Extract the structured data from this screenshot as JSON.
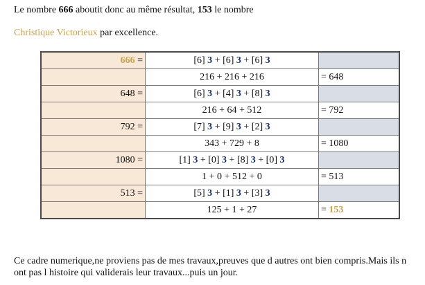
{
  "intro": {
    "line1": [
      {
        "text": "Le nombre ",
        "style": "plain"
      },
      {
        "text": "666",
        "style": "bold"
      },
      {
        "text": " aboutit donc au même résultat, ",
        "style": "plain"
      },
      {
        "text": "153",
        "style": "bold"
      },
      {
        "text": " le nombre",
        "style": "plain"
      }
    ],
    "line2": [
      {
        "text": "Christique Victorieux",
        "style": "gold"
      },
      {
        "text": " par excellence.",
        "style": "plain"
      }
    ]
  },
  "table": {
    "rows": [
      {
        "left": [
          {
            "text": "666",
            "style": "gold-bold"
          },
          {
            "text": " =",
            "style": "plain"
          }
        ],
        "mid": [
          {
            "text": "[6] ",
            "style": "plain"
          },
          {
            "text": "3",
            "style": "navy-bold"
          },
          {
            "text": " + [6] ",
            "style": "plain"
          },
          {
            "text": "3",
            "style": "navy-bold"
          },
          {
            "text": " + [6] ",
            "style": "plain"
          },
          {
            "text": "3",
            "style": "navy-bold"
          }
        ],
        "right": []
      },
      {
        "left": [],
        "mid": [
          {
            "text": "216 + 216 + 216",
            "style": "plain"
          }
        ],
        "right": [
          {
            "text": "= 648",
            "style": "plain"
          }
        ]
      },
      {
        "left": [
          {
            "text": "648 =",
            "style": "plain"
          }
        ],
        "mid": [
          {
            "text": "[6] ",
            "style": "plain"
          },
          {
            "text": "3",
            "style": "navy-bold"
          },
          {
            "text": " + [4] ",
            "style": "plain"
          },
          {
            "text": "3",
            "style": "navy-bold"
          },
          {
            "text": " + [8] ",
            "style": "plain"
          },
          {
            "text": "3",
            "style": "navy-bold"
          }
        ],
        "right": []
      },
      {
        "left": [],
        "mid": [
          {
            "text": "216 + 64 + 512",
            "style": "plain"
          }
        ],
        "right": [
          {
            "text": "= 792",
            "style": "plain"
          }
        ]
      },
      {
        "left": [
          {
            "text": "792 =",
            "style": "plain"
          }
        ],
        "mid": [
          {
            "text": "[7] ",
            "style": "plain"
          },
          {
            "text": "3",
            "style": "navy-bold"
          },
          {
            "text": " + [9] ",
            "style": "plain"
          },
          {
            "text": "3",
            "style": "navy-bold"
          },
          {
            "text": " + [2] ",
            "style": "plain"
          },
          {
            "text": "3",
            "style": "navy-bold"
          }
        ],
        "right": []
      },
      {
        "left": [],
        "mid": [
          {
            "text": "343 + 729 + 8",
            "style": "plain"
          }
        ],
        "right": [
          {
            "text": "= 1080",
            "style": "plain"
          }
        ]
      },
      {
        "left": [
          {
            "text": "1080 =",
            "style": "plain"
          }
        ],
        "mid": [
          {
            "text": "[1] ",
            "style": "plain"
          },
          {
            "text": "3",
            "style": "navy-bold"
          },
          {
            "text": " + [0] ",
            "style": "plain"
          },
          {
            "text": "3",
            "style": "navy-bold"
          },
          {
            "text": " + [8] ",
            "style": "plain"
          },
          {
            "text": "3",
            "style": "navy-bold"
          },
          {
            "text": " + [0] ",
            "style": "plain"
          },
          {
            "text": "3",
            "style": "navy-bold"
          }
        ],
        "right": []
      },
      {
        "left": [],
        "mid": [
          {
            "text": "1 + 0 + 512 + 0",
            "style": "plain"
          }
        ],
        "right": [
          {
            "text": "= 513",
            "style": "plain"
          }
        ]
      },
      {
        "left": [
          {
            "text": "513 =",
            "style": "plain"
          }
        ],
        "mid": [
          {
            "text": "[5] ",
            "style": "plain"
          },
          {
            "text": "3",
            "style": "navy-bold"
          },
          {
            "text": " + [1] ",
            "style": "plain"
          },
          {
            "text": "3",
            "style": "navy-bold"
          },
          {
            "text": " + [3] ",
            "style": "plain"
          },
          {
            "text": "3",
            "style": "navy-bold"
          }
        ],
        "right": []
      },
      {
        "left": [],
        "mid": [
          {
            "text": "125 + 1 + 27",
            "style": "plain"
          }
        ],
        "right": [
          {
            "text": "= ",
            "style": "plain"
          },
          {
            "text": "153",
            "style": "gold-bold"
          }
        ]
      }
    ]
  },
  "footer": {
    "paragraph": "Ce cadre numerique,ne proviens pas de mes travaux,preuves que d autres ont bien compris.Mais ils n ont pas l histoire qui validerais leur travaux...puis un jour."
  },
  "colors": {
    "gold": "#c8a24e",
    "navy": "#1a2f66",
    "left_column_bg": "#f7e8d8",
    "right_column_bg": "#d9dde5",
    "table_border": "#4a4a4a"
  }
}
